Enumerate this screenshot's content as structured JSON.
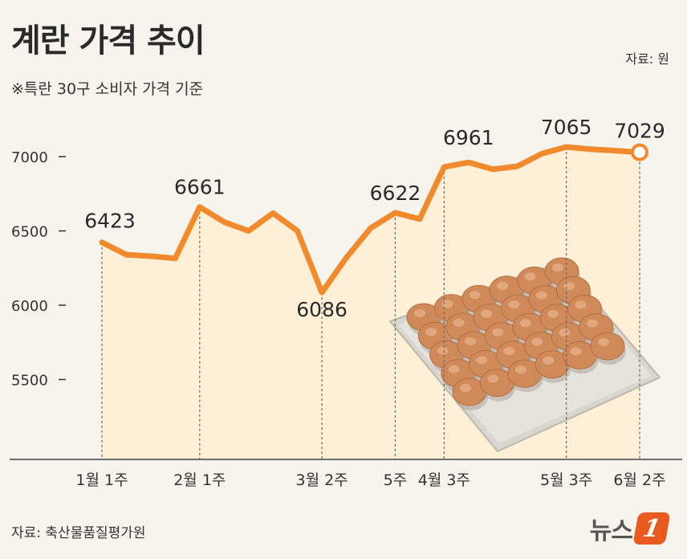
{
  "header": {
    "title": "계란 가격 추이",
    "subtitle": "※특란 30구 소비자 가격 기준",
    "unit": "자료: 원"
  },
  "footer": {
    "source": "자료: 축산물품질평가원",
    "logo_text": "뉴스",
    "logo_badge": "1"
  },
  "colors": {
    "line": "#f08a2c",
    "area": "#fdf0d6",
    "axis": "#444444"
  },
  "chart_data": {
    "type": "line",
    "title": "계란 가격 추이",
    "subtitle": "※특란 30구 소비자 가격 기준",
    "ylabel": "원",
    "xlabel": "",
    "ylim": [
      5000,
      7250
    ],
    "yticks": [
      5500,
      6000,
      6500,
      7000
    ],
    "grid": false,
    "x_labels": [
      "1월 1주",
      "2월 1주",
      "3월 2주",
      "5주",
      "4월 3주",
      "5월 3주",
      "6월 2주"
    ],
    "label_indices": [
      0,
      4,
      9,
      12,
      14,
      19,
      22
    ],
    "values": [
      6423,
      6340,
      6330,
      6315,
      6661,
      6560,
      6500,
      6620,
      6500,
      6086,
      6320,
      6520,
      6622,
      6580,
      6930,
      6961,
      6915,
      6935,
      7020,
      7065,
      7050,
      7040,
      7029
    ],
    "annotations": [
      {
        "index": 0,
        "text": "6423"
      },
      {
        "index": 4,
        "text": "6661"
      },
      {
        "index": 9,
        "text": "6086"
      },
      {
        "index": 12,
        "text": "6622"
      },
      {
        "index": 15,
        "text": "6961"
      },
      {
        "index": 19,
        "text": "7065"
      },
      {
        "index": 22,
        "text": "7029"
      }
    ],
    "image": "egg-tray"
  }
}
